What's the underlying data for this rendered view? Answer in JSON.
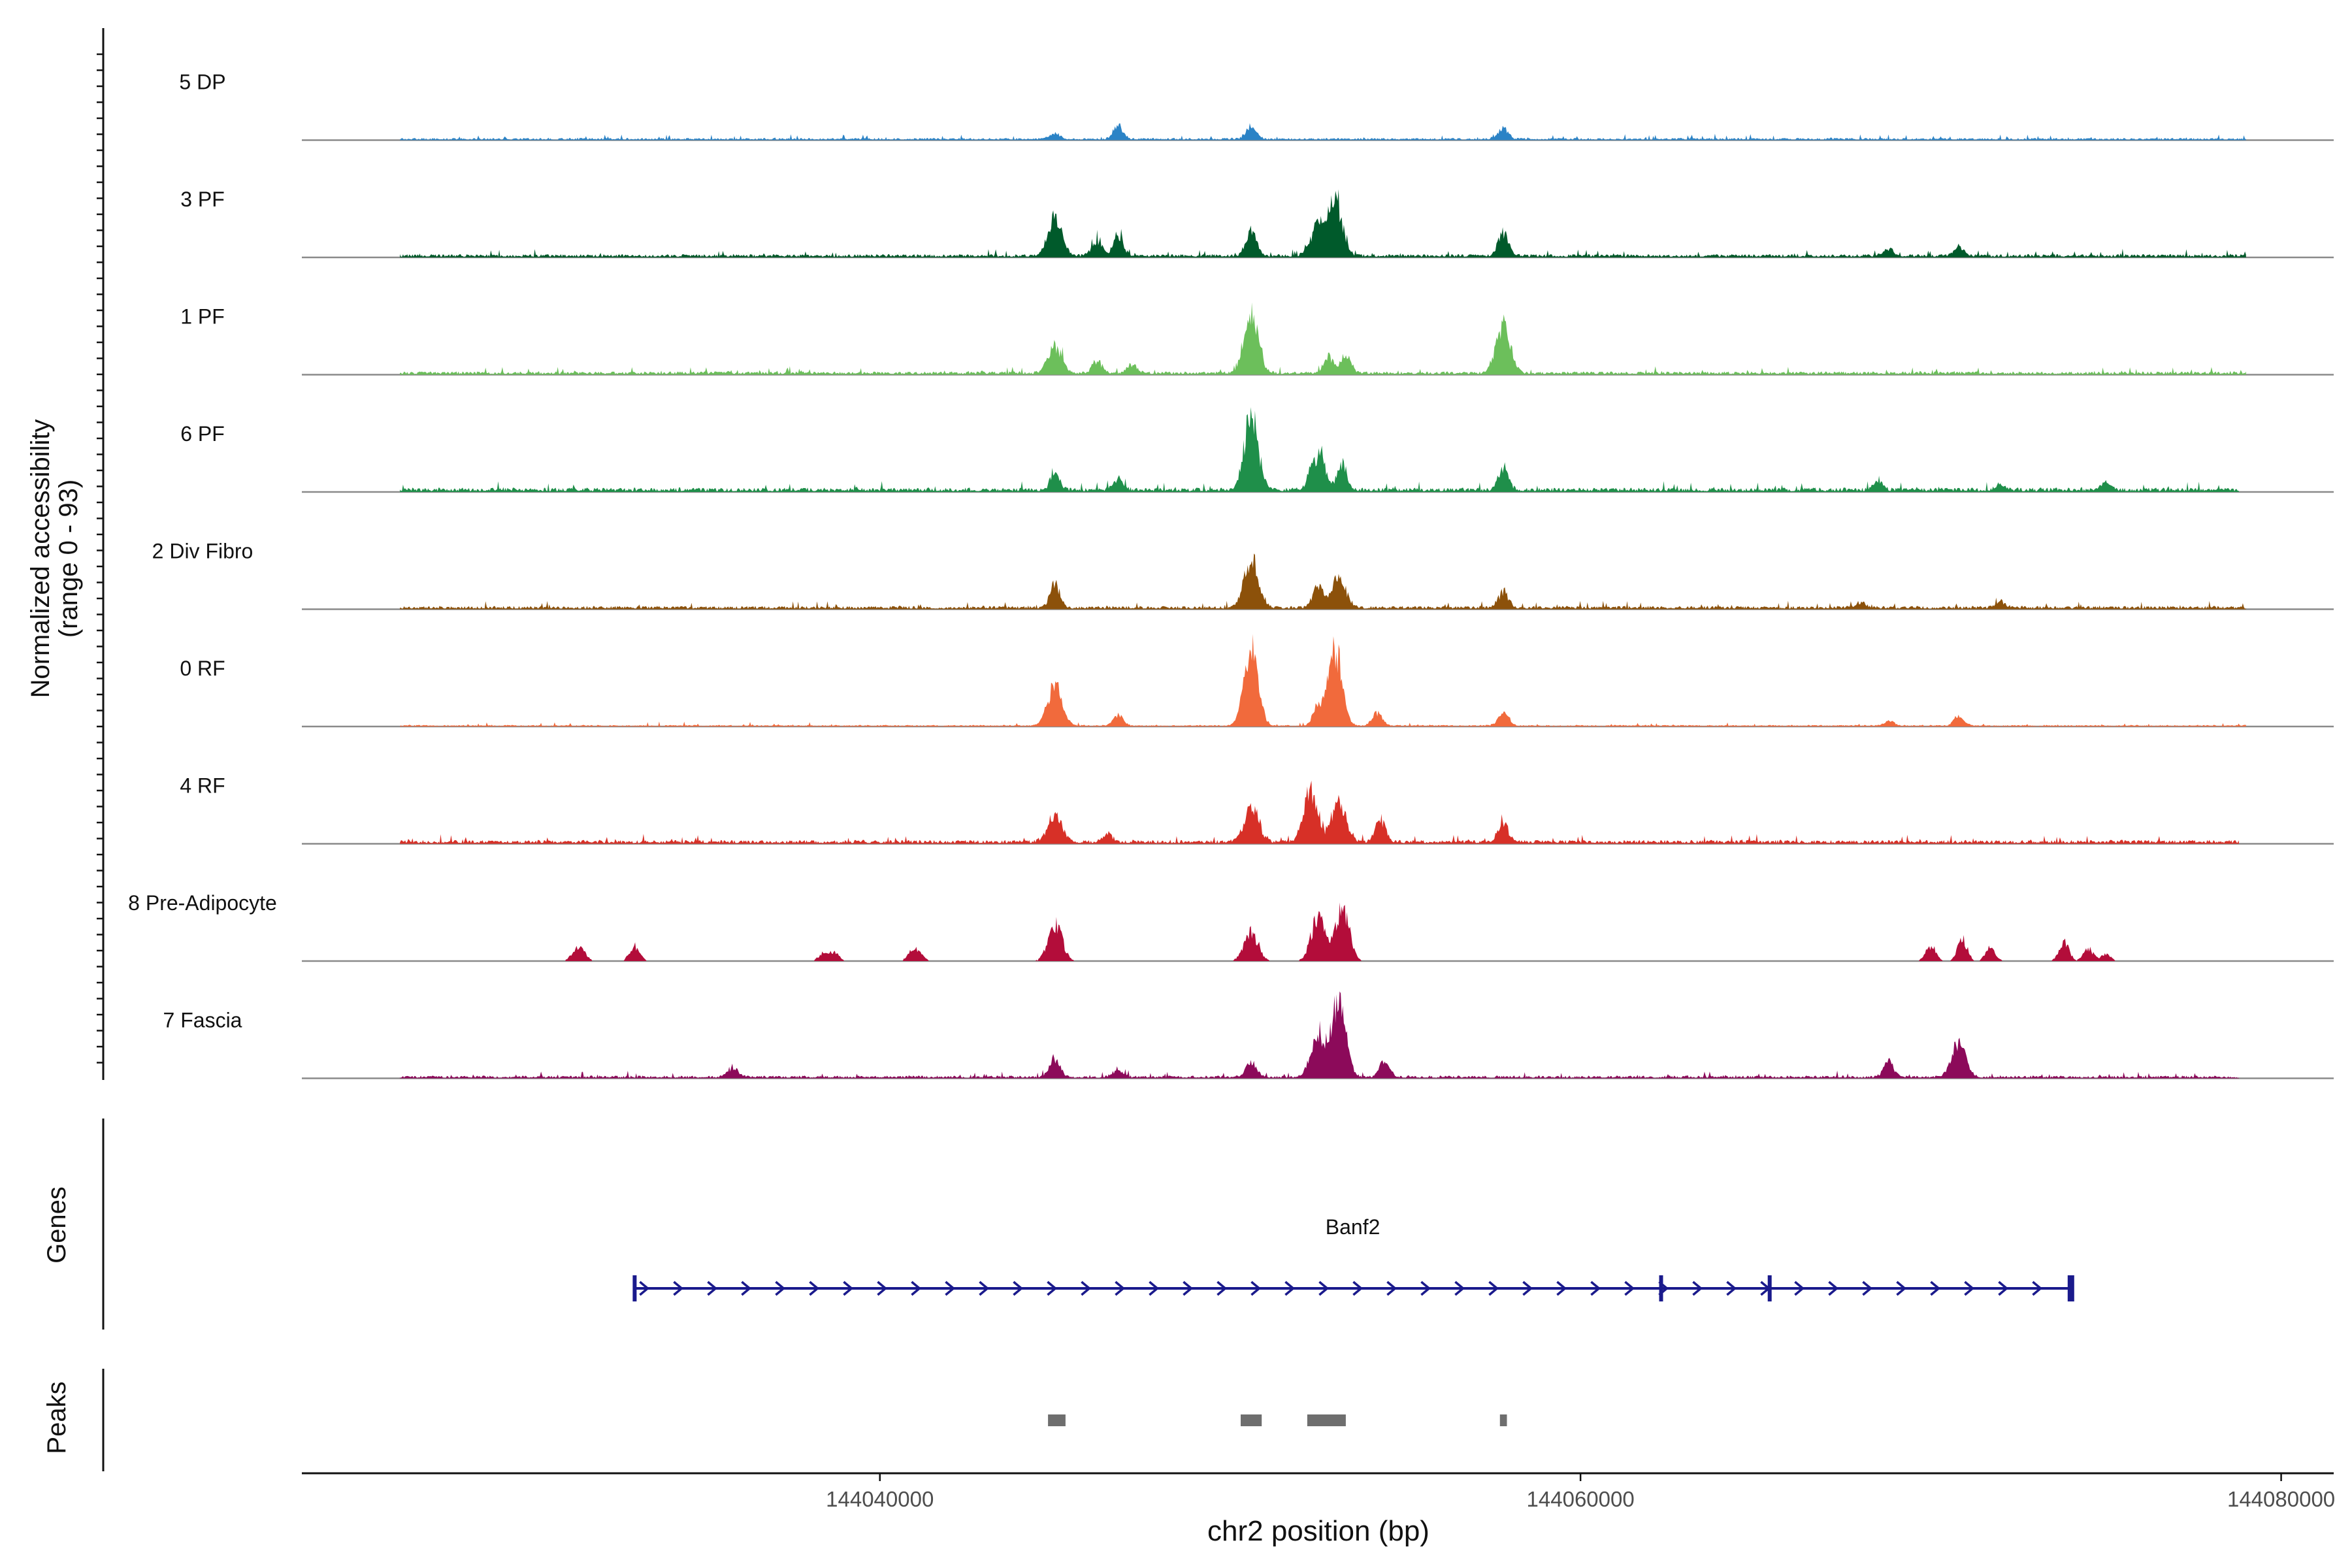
{
  "chart_data": {
    "type": "area",
    "title": "",
    "xlabel": "chr2 position (bp)",
    "ylabel": "Normalized accessibility",
    "ylabel_range": "(range 0 - 93)",
    "ylim": [
      0,
      93
    ],
    "xlim": [
      144023500,
      144081500
    ],
    "x_ticks": [
      144040000,
      144060000,
      144080000
    ],
    "x_tick_labels": [
      "144040000",
      "144060000",
      "144080000"
    ],
    "tracks": [
      {
        "name": "5 DP",
        "color": "#2b83c6",
        "start": 144026300,
        "end": 144079000,
        "baseline": 2,
        "noise": 2.5,
        "peaks": [
          [
            144045000,
            7
          ],
          [
            144046800,
            15
          ],
          [
            144050600,
            17
          ],
          [
            144057800,
            13
          ]
        ]
      },
      {
        "name": "3 PF",
        "color": "#005a2b",
        "start": 144026300,
        "end": 144079000,
        "baseline": 3,
        "noise": 3.5,
        "peaks": [
          [
            144045000,
            47
          ],
          [
            144046200,
            19
          ],
          [
            144046800,
            25
          ],
          [
            144050600,
            30
          ],
          [
            144052500,
            34
          ],
          [
            144053000,
            62
          ],
          [
            144057800,
            28
          ],
          [
            144068800,
            8
          ],
          [
            144070800,
            10
          ]
        ]
      },
      {
        "name": "1 PF",
        "color": "#6cbf5b",
        "start": 144026300,
        "end": 144079000,
        "baseline": 3,
        "noise": 3.5,
        "peaks": [
          [
            144045000,
            32
          ],
          [
            144046200,
            14
          ],
          [
            144047200,
            10
          ],
          [
            144050600,
            72
          ],
          [
            144052800,
            18
          ],
          [
            144053300,
            22
          ],
          [
            144057800,
            55
          ]
        ]
      },
      {
        "name": "6 PF",
        "color": "#1f8f4a",
        "start": 144026300,
        "end": 144078800,
        "baseline": 4,
        "noise": 4.5,
        "peaks": [
          [
            144045000,
            18
          ],
          [
            144046800,
            14
          ],
          [
            144050600,
            87
          ],
          [
            144052500,
            42
          ],
          [
            144053200,
            30
          ],
          [
            144057800,
            28
          ],
          [
            144068500,
            9
          ],
          [
            144072000,
            7
          ],
          [
            144075000,
            8
          ]
        ]
      },
      {
        "name": "2 Div Fibro",
        "color": "#8c510a",
        "start": 144026300,
        "end": 144079000,
        "baseline": 3,
        "noise": 3.5,
        "peaks": [
          [
            144045000,
            27
          ],
          [
            144050600,
            58
          ],
          [
            144052500,
            26
          ],
          [
            144053100,
            35
          ],
          [
            144057800,
            19
          ],
          [
            144068000,
            7
          ],
          [
            144072000,
            7
          ]
        ]
      },
      {
        "name": "0 RF",
        "color": "#f16a3c",
        "start": 144026300,
        "end": 144079000,
        "baseline": 1.5,
        "noise": 2,
        "peaks": [
          [
            144045000,
            50
          ],
          [
            144046800,
            12
          ],
          [
            144050600,
            91
          ],
          [
            144052500,
            22
          ],
          [
            144053000,
            86
          ],
          [
            144054200,
            15
          ],
          [
            144057800,
            14
          ],
          [
            144068800,
            6
          ],
          [
            144070800,
            11
          ]
        ]
      },
      {
        "name": "4 RF",
        "color": "#d73027",
        "start": 144026300,
        "end": 144078800,
        "baseline": 3.5,
        "noise": 4,
        "peaks": [
          [
            144045000,
            32
          ],
          [
            144046500,
            9
          ],
          [
            144050600,
            43
          ],
          [
            144052300,
            61
          ],
          [
            144053100,
            48
          ],
          [
            144054300,
            26
          ],
          [
            144057800,
            20
          ]
        ]
      },
      {
        "name": "8 Pre-Adipocyte",
        "color": "#b30d3a",
        "start": 144026300,
        "end": 144079000,
        "baseline": 0,
        "noise": 0,
        "peaks": [
          [
            144031300,
            10
          ],
          [
            144031500,
            10
          ],
          [
            144033000,
            18
          ],
          [
            144038400,
            9
          ],
          [
            144038700,
            9
          ],
          [
            144040900,
            9
          ],
          [
            144041100,
            9
          ],
          [
            144045000,
            45
          ],
          [
            144050600,
            35
          ],
          [
            144052500,
            50
          ],
          [
            144053200,
            60
          ],
          [
            144070000,
            18
          ],
          [
            144070900,
            25
          ],
          [
            144071700,
            16
          ],
          [
            144073800,
            23
          ],
          [
            144074500,
            14
          ],
          [
            144075000,
            8
          ]
        ]
      },
      {
        "name": "7 Fascia",
        "color": "#8c0a5a",
        "start": 144026300,
        "end": 144078800,
        "baseline": 2.5,
        "noise": 3,
        "peaks": [
          [
            144035800,
            12
          ],
          [
            144045000,
            22
          ],
          [
            144046800,
            8
          ],
          [
            144050600,
            18
          ],
          [
            144052500,
            50
          ],
          [
            144053100,
            93
          ],
          [
            144054400,
            18
          ],
          [
            144068800,
            18
          ],
          [
            144070800,
            40
          ]
        ]
      }
    ],
    "genes_label": "Genes",
    "gene": {
      "name": "Banf2",
      "start": 144033000,
      "end": 144074000,
      "strand": "+",
      "exons": [
        144033000,
        144062300,
        144065400,
        144074000
      ],
      "color": "#1a1a8c"
    },
    "peaks_label": "Peaks",
    "peak_regions": [
      [
        144044800,
        144045300
      ],
      [
        144050300,
        144050900
      ],
      [
        144052200,
        144053300
      ],
      [
        144057700,
        144057900
      ]
    ],
    "peak_color": "#6e6e6e"
  }
}
